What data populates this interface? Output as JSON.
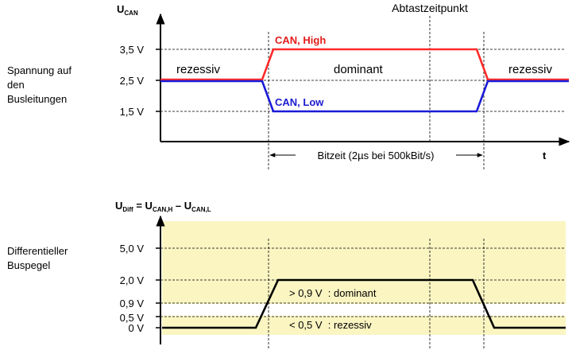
{
  "colors": {
    "high_signal": "#ff2a2a",
    "low_signal": "#1a1ad8",
    "diff_signal": "#000000",
    "band_fill": "#fbf5c2",
    "label_high": "#e21c1c",
    "label_low": "#1a1ad0"
  },
  "top": {
    "y_axis_title": "U",
    "y_axis_title_sub": "CAN",
    "sample_point_label": "Abtastzeitpunkt",
    "side_label": [
      "Spannung auf",
      "den",
      "Busleitungen"
    ],
    "ticks": [
      "3,5 V",
      "2,5 V",
      "1,5 V"
    ],
    "state_left": "rezessiv",
    "state_middle": "dominant",
    "state_right": "rezessiv",
    "high_label": "CAN, High",
    "low_label": "CAN, Low",
    "bit_time_label": "Bitzeit (2µs bei 500kBit/s)",
    "t_label": "t"
  },
  "bottom": {
    "formula": {
      "u": "U",
      "u_sub": "Diff",
      "eq": " = ",
      "u2": "U",
      "u2_sub": "CAN,H",
      "minus": " – ",
      "u3": "U",
      "u3_sub": "CAN,L"
    },
    "side_label": [
      "Differentieller",
      "Buspegel"
    ],
    "ticks": [
      "5,0 V",
      "2,0 V",
      "0,9 V",
      "0,5 V",
      "0 V"
    ],
    "dominant_range": "> 0,9 V  : dominant",
    "recessive_range": "< 0,5 V  : rezessiv"
  }
}
